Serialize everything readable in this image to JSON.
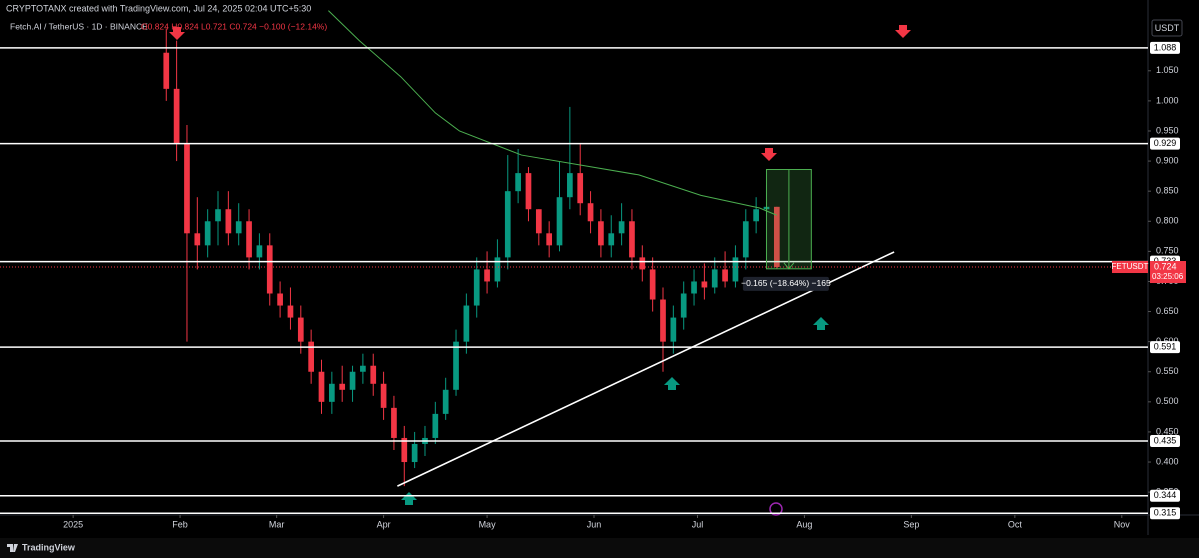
{
  "chart_data": {
    "type": "candlestick",
    "attribution": "CRYPTOTANX created with TradingView.com, Jul 24, 2025 02:04 UTC+5:30",
    "symbol": "Fetch.AI / TetherUS · 1D · BINANCE",
    "ohlc_text": "O0.824 H0.824 L0.721 C0.724 −0.100 (−12.14%)",
    "currency": "USDT",
    "brand": "TradingView",
    "up_color": "#089981",
    "down_color": "#f23645",
    "x": [
      27,
      30,
      33,
      36,
      39,
      42,
      45,
      48,
      51,
      54,
      57,
      60,
      63,
      66,
      69,
      72,
      75,
      78,
      81,
      84,
      87,
      90,
      93,
      96,
      99,
      102,
      105,
      108,
      111,
      114,
      117,
      120,
      123,
      126,
      129,
      132,
      135,
      138,
      141,
      144,
      147,
      150,
      153,
      156,
      159,
      162,
      165,
      168,
      171,
      174,
      177,
      180,
      183,
      186,
      189,
      192,
      195,
      198,
      201,
      204
    ],
    "open": [
      1.08,
      1.02,
      0.93,
      0.78,
      0.76,
      0.8,
      0.82,
      0.78,
      0.8,
      0.74,
      0.76,
      0.68,
      0.66,
      0.64,
      0.6,
      0.55,
      0.5,
      0.53,
      0.52,
      0.55,
      0.56,
      0.53,
      0.49,
      0.44,
      0.4,
      0.43,
      0.44,
      0.48,
      0.52,
      0.6,
      0.66,
      0.72,
      0.7,
      0.74,
      0.85,
      0.88,
      0.82,
      0.78,
      0.76,
      0.84,
      0.88,
      0.83,
      0.8,
      0.76,
      0.78,
      0.8,
      0.74,
      0.72,
      0.67,
      0.6,
      0.64,
      0.68,
      0.7,
      0.69,
      0.72,
      0.7,
      0.74,
      0.8,
      0.82,
      0.824
    ],
    "high": [
      1.12,
      1.1,
      0.96,
      0.84,
      0.82,
      0.85,
      0.85,
      0.83,
      0.82,
      0.78,
      0.78,
      0.7,
      0.69,
      0.66,
      0.62,
      0.57,
      0.55,
      0.56,
      0.56,
      0.58,
      0.58,
      0.55,
      0.51,
      0.46,
      0.45,
      0.46,
      0.5,
      0.54,
      0.62,
      0.68,
      0.74,
      0.75,
      0.77,
      0.91,
      0.92,
      0.89,
      0.82,
      0.8,
      0.9,
      0.99,
      0.93,
      0.85,
      0.82,
      0.81,
      0.83,
      0.82,
      0.76,
      0.74,
      0.69,
      0.66,
      0.7,
      0.72,
      0.73,
      0.74,
      0.75,
      0.76,
      0.82,
      0.84,
      0.86,
      0.824
    ],
    "low": [
      1.0,
      0.9,
      0.6,
      0.72,
      0.74,
      0.76,
      0.76,
      0.76,
      0.72,
      0.72,
      0.66,
      0.64,
      0.62,
      0.58,
      0.53,
      0.48,
      0.48,
      0.5,
      0.5,
      0.53,
      0.51,
      0.47,
      0.42,
      0.36,
      0.39,
      0.41,
      0.43,
      0.47,
      0.51,
      0.58,
      0.64,
      0.68,
      0.69,
      0.72,
      0.83,
      0.8,
      0.76,
      0.74,
      0.75,
      0.82,
      0.81,
      0.78,
      0.74,
      0.74,
      0.76,
      0.72,
      0.7,
      0.65,
      0.55,
      0.58,
      0.62,
      0.66,
      0.67,
      0.68,
      0.69,
      0.69,
      0.72,
      0.78,
      0.8,
      0.721
    ],
    "close": [
      1.02,
      0.93,
      0.78,
      0.76,
      0.8,
      0.82,
      0.78,
      0.8,
      0.74,
      0.76,
      0.68,
      0.66,
      0.64,
      0.6,
      0.55,
      0.5,
      0.53,
      0.52,
      0.55,
      0.56,
      0.53,
      0.49,
      0.44,
      0.4,
      0.43,
      0.44,
      0.48,
      0.52,
      0.6,
      0.66,
      0.72,
      0.7,
      0.74,
      0.85,
      0.88,
      0.82,
      0.78,
      0.76,
      0.84,
      0.88,
      0.83,
      0.8,
      0.76,
      0.78,
      0.8,
      0.74,
      0.72,
      0.67,
      0.6,
      0.64,
      0.68,
      0.7,
      0.69,
      0.72,
      0.7,
      0.74,
      0.8,
      0.82,
      0.824,
      0.724
    ],
    "ma": {
      "color": "#4caf50",
      "x": [
        74,
        83,
        95,
        105,
        112,
        130,
        164,
        182,
        199,
        204
      ],
      "values": [
        1.15,
        1.1,
        1.04,
        0.98,
        0.95,
        0.91,
        0.877,
        0.843,
        0.822,
        0.81
      ]
    },
    "trendline": {
      "color": "#ffffff",
      "x": [
        94,
        238
      ],
      "values": [
        0.36,
        0.749
      ]
    },
    "measure": {
      "x": [
        201,
        214
      ],
      "values": [
        0.886,
        0.721
      ],
      "label": "−0.165 (−18.64%) −165"
    },
    "levels": [
      1.088,
      0.929,
      0.733,
      0.591,
      0.435,
      0.344,
      0.315
    ],
    "last_price": {
      "name": "FETUSDT",
      "value": 0.724,
      "countdown": "03:25:06"
    },
    "xlim": [
      -21.2,
      311.6
    ],
    "ylim": [
      0.312,
      1.151
    ],
    "xticks": [
      {
        "value": 0,
        "label": "2025"
      },
      {
        "value": 31,
        "label": "Feb"
      },
      {
        "value": 59,
        "label": "Mar"
      },
      {
        "value": 90,
        "label": "Apr"
      },
      {
        "value": 120,
        "label": "May"
      },
      {
        "value": 151,
        "label": "Jun"
      },
      {
        "value": 181,
        "label": "Jul"
      },
      {
        "value": 212,
        "label": "Aug"
      },
      {
        "value": 243,
        "label": "Sep"
      },
      {
        "value": 273,
        "label": "Oct"
      },
      {
        "value": 304,
        "label": "Nov"
      }
    ],
    "yticks": [
      {
        "value": 1.05,
        "label": "1.050"
      },
      {
        "value": 1.0,
        "label": "1.000"
      },
      {
        "value": 0.95,
        "label": "0.950"
      },
      {
        "value": 0.9,
        "label": "0.900"
      },
      {
        "value": 0.85,
        "label": "0.850"
      },
      {
        "value": 0.8,
        "label": "0.800"
      },
      {
        "value": 0.75,
        "label": "0.750"
      },
      {
        "value": 0.7,
        "label": "0.700"
      },
      {
        "value": 0.65,
        "label": "0.650"
      },
      {
        "value": 0.6,
        "label": "0.600"
      },
      {
        "value": 0.55,
        "label": "0.550"
      },
      {
        "value": 0.5,
        "label": "0.500"
      },
      {
        "value": 0.45,
        "label": "0.450"
      },
      {
        "value": 0.4,
        "label": "0.400"
      },
      {
        "value": 0.35,
        "label": "0.350"
      }
    ]
  }
}
